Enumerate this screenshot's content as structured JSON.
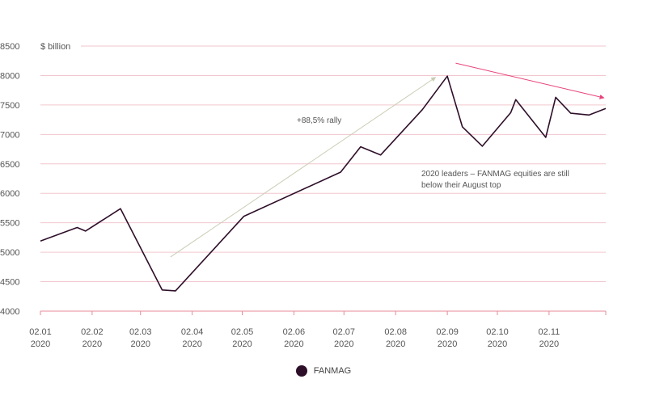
{
  "chart_data": {
    "type": "line",
    "ylabel": "$ billion",
    "ylim": [
      4000,
      8500
    ],
    "yticks": [
      4000,
      4500,
      5000,
      5500,
      6000,
      6500,
      7000,
      7500,
      8000,
      8500
    ],
    "x_ticks": [
      {
        "date": "2020-01-02",
        "label1": "02.01",
        "label2": "2020"
      },
      {
        "date": "2020-02-02",
        "label1": "02.02",
        "label2": "2020"
      },
      {
        "date": "2020-03-02",
        "label1": "02.03",
        "label2": "2020"
      },
      {
        "date": "2020-04-02",
        "label1": "02.04",
        "label2": "2020"
      },
      {
        "date": "2020-05-02",
        "label1": "02.05",
        "label2": "2020"
      },
      {
        "date": "2020-06-02",
        "label1": "02.06",
        "label2": "2020"
      },
      {
        "date": "2020-07-02",
        "label1": "02.07",
        "label2": "2020"
      },
      {
        "date": "2020-08-02",
        "label1": "02.08",
        "label2": "2020"
      },
      {
        "date": "2020-09-02",
        "label1": "02.09",
        "label2": "2020"
      },
      {
        "date": "2020-10-02",
        "label1": "02.10",
        "label2": "2020"
      },
      {
        "date": "2020-11-02",
        "label1": "02.11",
        "label2": "2020"
      }
    ],
    "xlim": [
      "2020-01-02",
      "2020-12-06"
    ],
    "series": [
      {
        "name": "FANMAG",
        "color": "#2e0f2a",
        "points": [
          {
            "x": "2020-01-02",
            "y": 5190
          },
          {
            "x": "2020-01-24",
            "y": 5420
          },
          {
            "x": "2020-01-29",
            "y": 5360
          },
          {
            "x": "2020-02-19",
            "y": 5740
          },
          {
            "x": "2020-03-15",
            "y": 4360
          },
          {
            "x": "2020-03-23",
            "y": 4345
          },
          {
            "x": "2020-05-03",
            "y": 5610
          },
          {
            "x": "2020-06-30",
            "y": 6360
          },
          {
            "x": "2020-07-12",
            "y": 6790
          },
          {
            "x": "2020-07-24",
            "y": 6650
          },
          {
            "x": "2020-08-18",
            "y": 7420
          },
          {
            "x": "2020-09-02",
            "y": 7990
          },
          {
            "x": "2020-09-11",
            "y": 7130
          },
          {
            "x": "2020-09-23",
            "y": 6800
          },
          {
            "x": "2020-10-10",
            "y": 7370
          },
          {
            "x": "2020-10-13",
            "y": 7590
          },
          {
            "x": "2020-10-31",
            "y": 6950
          },
          {
            "x": "2020-11-06",
            "y": 7630
          },
          {
            "x": "2020-11-15",
            "y": 7360
          },
          {
            "x": "2020-11-26",
            "y": 7330
          },
          {
            "x": "2020-12-06",
            "y": 7440
          }
        ]
      }
    ],
    "annotations": [
      {
        "text": "+88,5% rally"
      },
      {
        "text": "2020 leaders – FANMAG equities are still",
        "text2": "below their August top"
      }
    ],
    "arrows": [
      {
        "from": {
          "x": "2020-03-20",
          "y": 4920
        },
        "to": {
          "x": "2020-08-26",
          "y": 7970
        },
        "color": "#c8cdb4"
      },
      {
        "from": {
          "x": "2020-09-07",
          "y": 8210
        },
        "to": {
          "x": "2020-12-05",
          "y": 7620
        },
        "color": "#e8447a"
      }
    ],
    "grid": true,
    "legend_position": "bottom-center"
  },
  "colors": {
    "grid": "#f2c6ce",
    "axis": "#e78a99",
    "text": "#555555"
  }
}
